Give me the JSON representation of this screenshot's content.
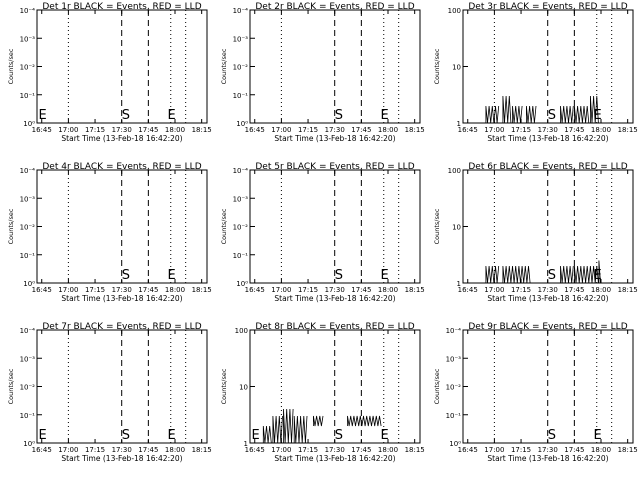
{
  "charts": [
    {
      "title": "Det 1r BLACK = Events, RED = LLD",
      "ytype": "log",
      "yticks": [
        "10⁰",
        "10⁻¹",
        "10⁻²",
        "10⁻³",
        "10⁻⁴"
      ],
      "xlabel": "Start Time (13-Feb-18 16:42:20)",
      "ylabel": "Counts/sec",
      "xticks": [
        "16:45",
        "17:00",
        "17:15",
        "17:30",
        "17:45",
        "18:00",
        "18:15"
      ],
      "annotations": [
        {
          "text": "E",
          "x": 16.72
        },
        {
          "text": "S",
          "x": 17.5
        },
        {
          "text": "E",
          "x": 17.93
        }
      ],
      "data": []
    },
    {
      "title": "Det 2r BLACK = Events, RED = LLD",
      "ytype": "log",
      "yticks": [
        "10⁰",
        "10⁻¹",
        "10⁻²",
        "10⁻³",
        "10⁻⁴"
      ],
      "xlabel": "Start Time (13-Feb-18 16:42:20)",
      "ylabel": "Counts/sec",
      "xticks": [
        "16:45",
        "17:00",
        "17:15",
        "17:30",
        "17:45",
        "18:00",
        "18:15"
      ],
      "annotations": [
        {
          "text": "S",
          "x": 17.5
        },
        {
          "text": "E",
          "x": 17.93
        }
      ],
      "data": []
    },
    {
      "title": "Det 3r BLACK = Events, RED = LLD",
      "ytype": "log2",
      "yticks": [
        "1",
        "10",
        "100"
      ],
      "xlabel": "Start Time (13-Feb-18 16:42:20)",
      "ylabel": "Counts/sec",
      "xticks": [
        "16:45",
        "17:00",
        "17:15",
        "17:30",
        "17:45",
        "18:00",
        "18:15"
      ],
      "annotations": [
        {
          "text": "S",
          "x": 17.5
        },
        {
          "text": "E",
          "x": 17.93
        }
      ],
      "data": [
        {
          "x0": 16.92,
          "x1": 17.05,
          "lo": 1,
          "hi": 2
        },
        {
          "x0": 17.08,
          "x1": 17.17,
          "lo": 1,
          "hi": 3
        },
        {
          "x0": 17.17,
          "x1": 17.27,
          "lo": 1,
          "hi": 2
        },
        {
          "x0": 17.3,
          "x1": 17.4,
          "lo": 1,
          "hi": 2
        },
        {
          "x0": 17.62,
          "x1": 17.75,
          "lo": 1,
          "hi": 2
        },
        {
          "x0": 17.75,
          "x1": 17.9,
          "lo": 1,
          "hi": 2
        },
        {
          "x0": 17.9,
          "x1": 17.98,
          "lo": 1,
          "hi": 3
        }
      ]
    },
    {
      "title": "Det 4r BLACK = Events, RED = LLD",
      "ytype": "log",
      "yticks": [
        "10⁰",
        "10⁻¹",
        "10⁻²",
        "10⁻³",
        "10⁻⁴"
      ],
      "xlabel": "Start Time (13-Feb-18 16:42:20)",
      "ylabel": "Counts/sec",
      "xticks": [
        "16:45",
        "17:00",
        "17:15",
        "17:30",
        "17:45",
        "18:00",
        "18:15"
      ],
      "annotations": [
        {
          "text": "S",
          "x": 17.5
        },
        {
          "text": "E",
          "x": 17.93
        }
      ],
      "data": []
    },
    {
      "title": "Det 5r BLACK = Events, RED = LLD",
      "ytype": "log",
      "yticks": [
        "10⁰",
        "10⁻¹",
        "10⁻²",
        "10⁻³",
        "10⁻⁴"
      ],
      "xlabel": "Start Time (13-Feb-18 16:42:20)",
      "ylabel": "Counts/sec",
      "xticks": [
        "16:45",
        "17:00",
        "17:15",
        "17:30",
        "17:45",
        "18:00",
        "18:15"
      ],
      "annotations": [
        {
          "text": "S",
          "x": 17.5
        },
        {
          "text": "E",
          "x": 17.93
        }
      ],
      "data": []
    },
    {
      "title": "Det 6r BLACK = Events, RED = LLD",
      "ytype": "log2",
      "yticks": [
        "1",
        "10",
        "100"
      ],
      "xlabel": "Start Time (13-Feb-18 16:42:20)",
      "ylabel": "Counts/sec",
      "xticks": [
        "16:45",
        "17:00",
        "17:15",
        "17:30",
        "17:45",
        "18:00",
        "18:15"
      ],
      "annotations": [
        {
          "text": "S",
          "x": 17.5
        },
        {
          "text": "E",
          "x": 17.93
        }
      ],
      "data": [
        {
          "x0": 16.92,
          "x1": 17.05,
          "lo": 1,
          "hi": 2
        },
        {
          "x0": 17.08,
          "x1": 17.35,
          "lo": 1,
          "hi": 2
        },
        {
          "x0": 17.62,
          "x1": 17.75,
          "lo": 1,
          "hi": 2
        },
        {
          "x0": 17.75,
          "x1": 17.98,
          "lo": 1,
          "hi": 2
        },
        {
          "x0": 17.98,
          "x1": 18.0,
          "lo": 1,
          "hi": 2.5
        }
      ]
    },
    {
      "title": "Det 7r BLACK = Events, RED = LLD",
      "ytype": "log",
      "yticks": [
        "10⁰",
        "10⁻¹",
        "10⁻²",
        "10⁻³",
        "10⁻⁴"
      ],
      "xlabel": "Start Time (13-Feb-18 16:42:20)",
      "ylabel": "Counts/sec",
      "xticks": [
        "16:45",
        "17:00",
        "17:15",
        "17:30",
        "17:45",
        "18:00",
        "18:15"
      ],
      "annotations": [
        {
          "text": "E",
          "x": 16.72
        },
        {
          "text": "S",
          "x": 17.5
        },
        {
          "text": "E",
          "x": 17.93
        }
      ],
      "data": []
    },
    {
      "title": "Det 8r BLACK = Events, RED = LLD",
      "ytype": "log2",
      "yticks": [
        "1",
        "10",
        "100"
      ],
      "xlabel": "Start Time (13-Feb-18 16:42:20)",
      "ylabel": "Counts/sec",
      "xticks": [
        "16:45",
        "17:00",
        "17:15",
        "17:30",
        "17:45",
        "18:00",
        "18:15"
      ],
      "annotations": [
        {
          "text": "E",
          "x": 16.72
        },
        {
          "text": "S",
          "x": 17.5
        },
        {
          "text": "E",
          "x": 17.93
        }
      ],
      "data": [
        {
          "x0": 16.83,
          "x1": 16.92,
          "lo": 1,
          "hi": 2
        },
        {
          "x0": 16.92,
          "x1": 17.02,
          "lo": 1,
          "hi": 3
        },
        {
          "x0": 17.02,
          "x1": 17.12,
          "lo": 1,
          "hi": 4
        },
        {
          "x0": 17.12,
          "x1": 17.25,
          "lo": 1,
          "hi": 3
        },
        {
          "x0": 17.3,
          "x1": 17.4,
          "lo": 2,
          "hi": 3
        },
        {
          "x0": 17.62,
          "x1": 17.95,
          "lo": 2,
          "hi": 3
        }
      ]
    },
    {
      "title": "Det 9r BLACK = Events, RED = LLD",
      "ytype": "log",
      "yticks": [
        "10⁰",
        "10⁻¹",
        "10⁻²",
        "10⁻³",
        "10⁻⁴"
      ],
      "xlabel": "Start Time (13-Feb-18 16:42:20)",
      "ylabel": "Counts/sec",
      "xticks": [
        "16:45",
        "17:00",
        "17:15",
        "17:30",
        "17:45",
        "18:00",
        "18:15"
      ],
      "annotations": [
        {
          "text": "S",
          "x": 17.5
        },
        {
          "text": "E",
          "x": 17.93
        }
      ],
      "data": []
    }
  ],
  "chart_data": [
    {
      "type": "line",
      "title": "Det 1r BLACK = Events, RED = LLD",
      "xlabel": "Start Time (13-Feb-18 16:42:20)",
      "ylabel": "Counts/sec",
      "series": []
    },
    {
      "type": "line",
      "title": "Det 2r BLACK = Events, RED = LLD",
      "xlabel": "Start Time (13-Feb-18 16:42:20)",
      "ylabel": "Counts/sec",
      "series": []
    },
    {
      "type": "line",
      "title": "Det 3r BLACK = Events, RED = LLD",
      "xlabel": "Start Time (13-Feb-18 16:42:20)",
      "ylabel": "Counts/sec",
      "series": [
        {
          "values": [
            2,
            3,
            2,
            2,
            2,
            2,
            3
          ]
        }
      ]
    },
    {
      "type": "line",
      "title": "Det 4r BLACK = Events, RED = LLD",
      "xlabel": "Start Time (13-Feb-18 16:42:20)",
      "ylabel": "Counts/sec",
      "series": []
    },
    {
      "type": "line",
      "title": "Det 5r BLACK = Events, RED = LLD",
      "xlabel": "Start Time (13-Feb-18 16:42:20)",
      "ylabel": "Counts/sec",
      "series": []
    },
    {
      "type": "line",
      "title": "Det 6r BLACK = Events, RED = LLD",
      "xlabel": "Start Time (13-Feb-18 16:42:20)",
      "ylabel": "Counts/sec",
      "series": [
        {
          "values": [
            2,
            2,
            2,
            2,
            2.5
          ]
        }
      ]
    },
    {
      "type": "line",
      "title": "Det 7r BLACK = Events, RED = LLD",
      "xlabel": "Start Time (13-Feb-18 16:42:20)",
      "ylabel": "Counts/sec",
      "series": []
    },
    {
      "type": "line",
      "title": "Det 8r BLACK = Events, RED = LLD",
      "xlabel": "Start Time (13-Feb-18 16:42:20)",
      "ylabel": "Counts/sec",
      "series": [
        {
          "values": [
            2,
            3,
            4,
            3,
            3,
            3
          ]
        }
      ]
    },
    {
      "type": "line",
      "title": "Det 9r BLACK = Events, RED = LLD",
      "xlabel": "Start Time (13-Feb-18 16:42:20)",
      "ylabel": "Counts/sec",
      "series": []
    }
  ]
}
